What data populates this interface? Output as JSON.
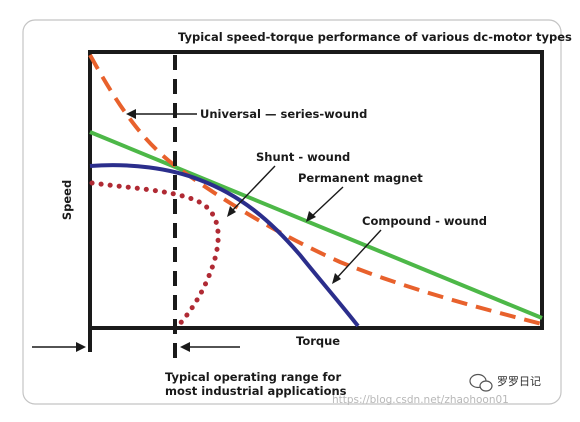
{
  "title": "Typical speed-torque performance of various dc-motor types",
  "axes": {
    "x_label": "Torque",
    "y_label": "Speed"
  },
  "labels": {
    "universal": "Universal — series-wound",
    "shunt": "Shunt - wound",
    "permanent": "Permanent magnet",
    "compound": "Compound - wound"
  },
  "range_note_line1": "Typical operating range for",
  "range_note_line2": "most industrial applications",
  "watermark": "https://blog.csdn.net/zhaohoon01",
  "brand": "罗罗日记",
  "colors": {
    "universal": "#e8612c",
    "permanent": "#4db848",
    "shunt": "#2b2e8c",
    "compound": "#b02a34",
    "frame": "#1a1a1a"
  }
}
